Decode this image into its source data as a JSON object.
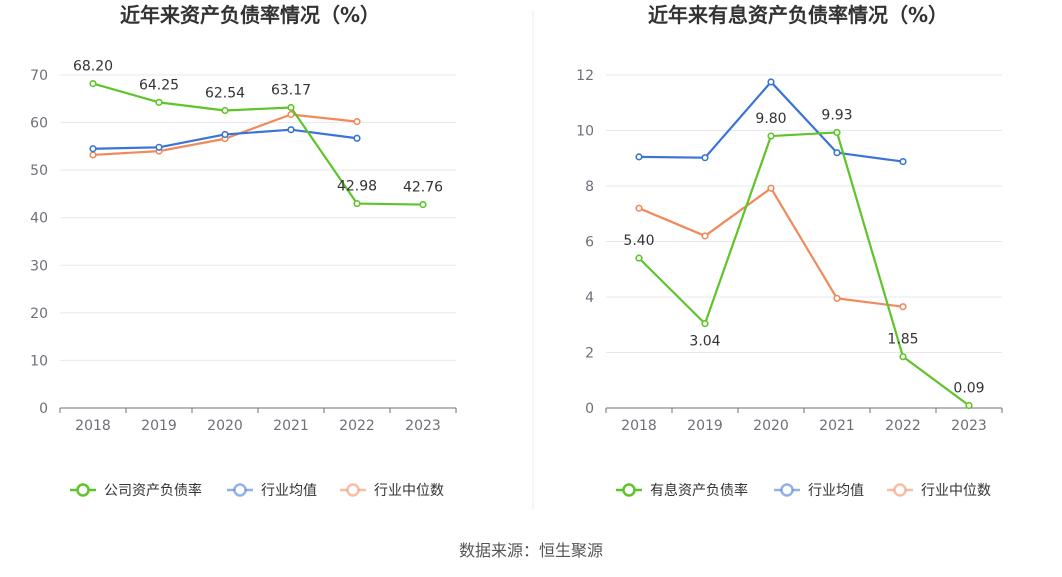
{
  "source": "数据来源：恒生聚源",
  "chart_data": [
    {
      "type": "line",
      "title": "近年来资产负债率情况（%）",
      "x": [
        "2018",
        "2019",
        "2020",
        "2021",
        "2022",
        "2023"
      ],
      "ylim": [
        0,
        70
      ],
      "yticks": [
        0,
        10,
        20,
        30,
        40,
        50,
        60,
        70
      ],
      "grid": true,
      "legend_position": "bottom",
      "series": [
        {
          "name": "公司资产负债率",
          "color": "#5ec429",
          "values": [
            68.2,
            64.25,
            62.54,
            63.17,
            42.98,
            42.76
          ],
          "labels": [
            "68.20",
            "64.25",
            "62.54",
            "63.17",
            "42.98",
            "42.76"
          ]
        },
        {
          "name": "行业均值",
          "color": "#3b73d6",
          "values": [
            54.5,
            54.8,
            57.5,
            58.5,
            56.7,
            null
          ]
        },
        {
          "name": "行业中位数",
          "color": "#f08a5d",
          "values": [
            53.2,
            54.0,
            56.6,
            61.7,
            60.2,
            null
          ]
        }
      ]
    },
    {
      "type": "line",
      "title": "近年来有息资产负债率情况（%）",
      "x": [
        "2018",
        "2019",
        "2020",
        "2021",
        "2022",
        "2023"
      ],
      "ylim": [
        0,
        12
      ],
      "yticks": [
        0,
        2,
        4,
        6,
        8,
        10,
        12
      ],
      "grid": true,
      "legend_position": "bottom",
      "series": [
        {
          "name": "有息资产负债率",
          "color": "#5ec429",
          "values": [
            5.4,
            3.04,
            9.8,
            9.93,
            1.85,
            0.09
          ],
          "labels": [
            "5.40",
            "3.04",
            "9.80",
            "9.93",
            "1.85",
            "0.09"
          ]
        },
        {
          "name": "行业均值",
          "color": "#3b73d6",
          "values": [
            9.05,
            9.02,
            11.75,
            9.2,
            8.88,
            null
          ]
        },
        {
          "name": "行业中位数",
          "color": "#f08a5d",
          "values": [
            7.2,
            6.2,
            7.92,
            3.95,
            3.65,
            null
          ]
        }
      ]
    }
  ]
}
